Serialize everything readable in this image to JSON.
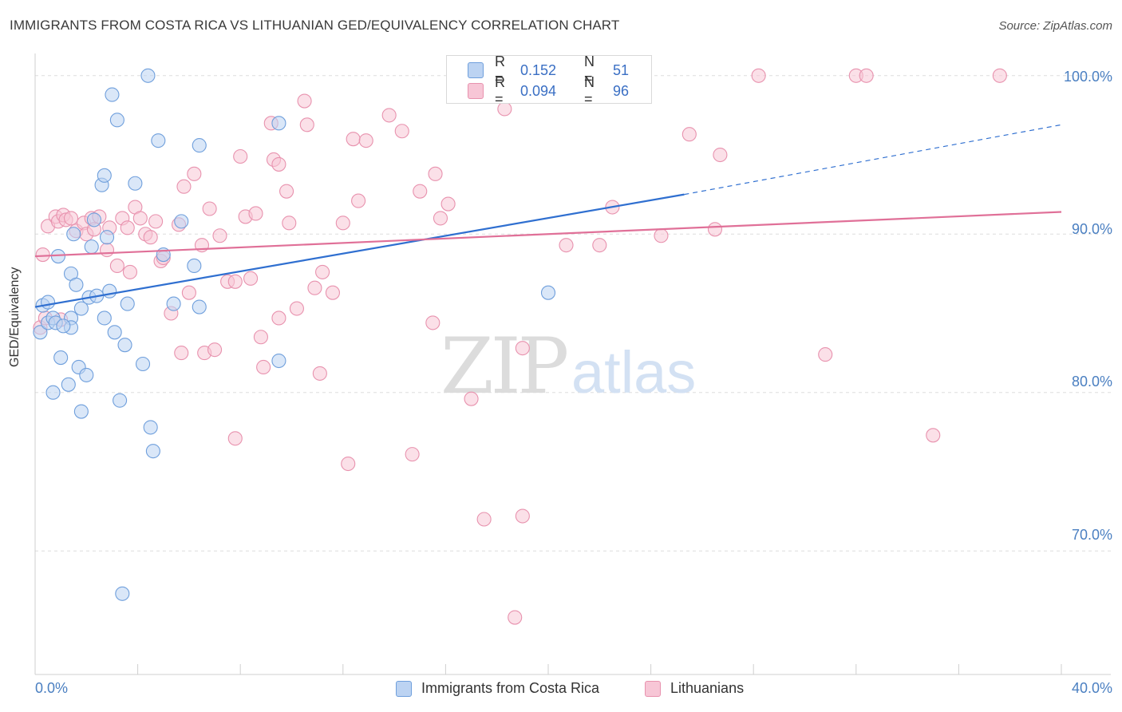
{
  "title": "IMMIGRANTS FROM COSTA RICA VS LITHUANIAN GED/EQUIVALENCY CORRELATION CHART",
  "source": "Source: ZipAtlas.com",
  "watermark": {
    "zip": "ZIP",
    "atlas": "atlas"
  },
  "colors": {
    "blue_fill": "#bcd3f2",
    "blue_stroke": "#6f9fdc",
    "blue_line": "#2f6fd0",
    "pink_fill": "#f7c6d6",
    "pink_stroke": "#e892ae",
    "pink_line": "#e07098",
    "grid": "#dedede",
    "tick_text": "#4a7fc1"
  },
  "legend_top": {
    "rows": [
      {
        "r_label": "R =",
        "r_value": "0.152",
        "n_label": "N =",
        "n_value": "51"
      },
      {
        "r_label": "R =",
        "r_value": "0.094",
        "n_label": "N =",
        "n_value": "96"
      }
    ]
  },
  "legend_bottom": [
    "Immigrants from Costa Rica",
    "Lithuanians"
  ],
  "axis": {
    "ylabel": "GED/Equivalency",
    "x_left": "0.0%",
    "x_right": "40.0%",
    "y_ticks": [
      "100.0%",
      "90.0%",
      "80.0%",
      "70.0%"
    ]
  },
  "chart_data": {
    "type": "scatter",
    "title": "IMMIGRANTS FROM COSTA RICA VS LITHUANIAN GED/EQUIVALENCY CORRELATION CHART",
    "xlabel": "",
    "ylabel": "GED/Equivalency",
    "xlim": [
      0,
      40
    ],
    "ylim": [
      62.2,
      101.4
    ],
    "y_ticks": [
      100,
      90,
      80,
      70
    ],
    "x_ticks": [
      0,
      40
    ],
    "grid": true,
    "legend_placement": "bottom",
    "series": [
      {
        "name": "Immigrants from Costa Rica",
        "R": 0.152,
        "N": 51,
        "trend": {
          "x": [
            0,
            25.3
          ],
          "y": [
            85.4,
            92.5
          ],
          "dashed_to": {
            "x": 40,
            "y": 96.9
          }
        },
        "points": [
          [
            0.2,
            83.8
          ],
          [
            0.3,
            85.5
          ],
          [
            0.5,
            85.7
          ],
          [
            0.5,
            84.4
          ],
          [
            0.7,
            84.7
          ],
          [
            0.7,
            80.0
          ],
          [
            0.8,
            84.4
          ],
          [
            0.9,
            88.6
          ],
          [
            1.0,
            82.2
          ],
          [
            1.3,
            80.5
          ],
          [
            1.4,
            84.7
          ],
          [
            1.4,
            84.1
          ],
          [
            1.4,
            87.5
          ],
          [
            1.5,
            90.0
          ],
          [
            1.6,
            86.8
          ],
          [
            1.7,
            81.6
          ],
          [
            1.8,
            85.3
          ],
          [
            1.8,
            78.8
          ],
          [
            2.0,
            81.1
          ],
          [
            2.1,
            86.0
          ],
          [
            2.2,
            89.2
          ],
          [
            2.3,
            90.9
          ],
          [
            2.4,
            86.1
          ],
          [
            2.6,
            93.1
          ],
          [
            2.7,
            93.7
          ],
          [
            2.7,
            84.7
          ],
          [
            2.8,
            89.8
          ],
          [
            2.9,
            86.4
          ],
          [
            3.0,
            98.8
          ],
          [
            3.1,
            83.8
          ],
          [
            3.2,
            97.2
          ],
          [
            3.3,
            79.5
          ],
          [
            3.5,
            83.0
          ],
          [
            3.6,
            85.6
          ],
          [
            3.9,
            93.2
          ],
          [
            4.2,
            81.8
          ],
          [
            4.4,
            100.0
          ],
          [
            4.5,
            77.8
          ],
          [
            4.6,
            76.3
          ],
          [
            4.8,
            95.9
          ],
          [
            5.0,
            88.7
          ],
          [
            5.4,
            85.6
          ],
          [
            5.7,
            90.8
          ],
          [
            6.2,
            88.0
          ],
          [
            6.4,
            95.6
          ],
          [
            6.4,
            85.4
          ],
          [
            9.5,
            82.0
          ],
          [
            9.5,
            97.0
          ],
          [
            20.0,
            86.3
          ],
          [
            3.4,
            67.3
          ],
          [
            1.1,
            84.2
          ]
        ]
      },
      {
        "name": "Lithuanians",
        "R": 0.094,
        "N": 96,
        "trend": {
          "x": [
            0,
            40
          ],
          "y": [
            88.6,
            91.4
          ]
        },
        "points": [
          [
            0.3,
            88.7
          ],
          [
            0.5,
            90.5
          ],
          [
            0.8,
            91.1
          ],
          [
            0.9,
            90.8
          ],
          [
            1.0,
            84.6
          ],
          [
            1.1,
            91.2
          ],
          [
            1.2,
            90.9
          ],
          [
            1.4,
            91.0
          ],
          [
            1.6,
            90.2
          ],
          [
            1.9,
            90.7
          ],
          [
            2.0,
            90.0
          ],
          [
            2.2,
            91.0
          ],
          [
            2.3,
            90.3
          ],
          [
            2.5,
            91.1
          ],
          [
            2.8,
            89.0
          ],
          [
            2.9,
            90.4
          ],
          [
            3.2,
            88.0
          ],
          [
            3.4,
            91.0
          ],
          [
            3.6,
            90.4
          ],
          [
            3.7,
            87.6
          ],
          [
            3.9,
            91.7
          ],
          [
            4.1,
            91.0
          ],
          [
            4.3,
            90.0
          ],
          [
            4.5,
            89.8
          ],
          [
            4.7,
            90.8
          ],
          [
            4.9,
            88.3
          ],
          [
            5.0,
            88.5
          ],
          [
            5.3,
            85.0
          ],
          [
            5.6,
            90.6
          ],
          [
            5.7,
            82.5
          ],
          [
            5.8,
            93.0
          ],
          [
            6.0,
            86.3
          ],
          [
            6.2,
            93.8
          ],
          [
            6.5,
            89.3
          ],
          [
            6.6,
            82.5
          ],
          [
            6.8,
            91.6
          ],
          [
            7.0,
            82.7
          ],
          [
            7.2,
            89.9
          ],
          [
            7.5,
            87.0
          ],
          [
            7.8,
            87.0
          ],
          [
            7.8,
            77.1
          ],
          [
            8.0,
            94.9
          ],
          [
            8.2,
            91.1
          ],
          [
            8.4,
            87.2
          ],
          [
            8.6,
            91.3
          ],
          [
            8.8,
            83.5
          ],
          [
            8.9,
            81.6
          ],
          [
            9.2,
            97.0
          ],
          [
            9.3,
            94.7
          ],
          [
            9.5,
            84.7
          ],
          [
            9.5,
            94.4
          ],
          [
            9.8,
            92.7
          ],
          [
            9.9,
            90.7
          ],
          [
            10.2,
            85.3
          ],
          [
            10.5,
            98.4
          ],
          [
            10.6,
            96.9
          ],
          [
            10.9,
            86.6
          ],
          [
            11.1,
            81.2
          ],
          [
            11.2,
            87.6
          ],
          [
            11.6,
            86.3
          ],
          [
            12.0,
            90.7
          ],
          [
            12.2,
            75.5
          ],
          [
            12.4,
            96.0
          ],
          [
            12.6,
            92.1
          ],
          [
            12.9,
            95.9
          ],
          [
            13.8,
            97.5
          ],
          [
            14.3,
            96.5
          ],
          [
            14.7,
            76.1
          ],
          [
            15.0,
            92.7
          ],
          [
            15.5,
            84.4
          ],
          [
            15.6,
            93.8
          ],
          [
            15.8,
            91.0
          ],
          [
            16.1,
            91.9
          ],
          [
            17.0,
            79.6
          ],
          [
            17.5,
            72.0
          ],
          [
            18.3,
            97.9
          ],
          [
            18.7,
            65.8
          ],
          [
            19.0,
            82.8
          ],
          [
            19.0,
            72.2
          ],
          [
            20.7,
            89.3
          ],
          [
            22.0,
            89.3
          ],
          [
            22.5,
            91.7
          ],
          [
            22.9,
            100.0
          ],
          [
            23.7,
            100.0
          ],
          [
            24.4,
            89.9
          ],
          [
            25.5,
            96.3
          ],
          [
            26.5,
            90.3
          ],
          [
            26.7,
            95.0
          ],
          [
            28.2,
            100.0
          ],
          [
            30.8,
            82.4
          ],
          [
            32.0,
            100.0
          ],
          [
            32.4,
            100.0
          ],
          [
            35.0,
            77.3
          ],
          [
            37.6,
            100.0
          ],
          [
            0.2,
            84.1
          ],
          [
            0.4,
            84.7
          ]
        ]
      }
    ]
  }
}
